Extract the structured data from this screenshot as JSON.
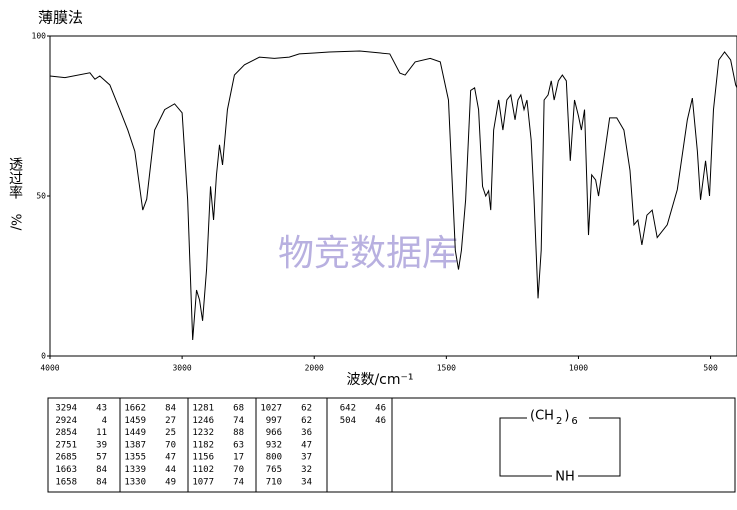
{
  "chart_data": {
    "type": "line",
    "title": "薄膜法",
    "xlabel": "波数/cm⁻¹",
    "ylabel": "透过率",
    "ylabel_unit": "%/",
    "watermark": "物竞数据库",
    "watermark_color": "#b8b0e0",
    "xlim": [
      4000,
      400
    ],
    "x_expand_below": 2000,
    "xticks": [
      4000,
      3000,
      2000,
      1500,
      1000,
      500
    ],
    "ylim": [
      0,
      100
    ],
    "yticks": [
      0,
      50,
      100
    ],
    "series": [
      {
        "name": "spectrum",
        "color": "#000000",
        "x": [
          4000,
          3887,
          3698,
          3660,
          3623,
          3547,
          3472,
          3411,
          3358,
          3298,
          3268,
          3208,
          3132,
          3057,
          3000,
          2958,
          2920,
          2891,
          2868,
          2845,
          2815,
          2785,
          2762,
          2740,
          2717,
          2694,
          2657,
          2604,
          2528,
          2415,
          2302,
          2189,
          2113,
          2000,
          1943,
          1828,
          1714,
          1676,
          1656,
          1618,
          1561,
          1523,
          1492,
          1466,
          1454,
          1443,
          1427,
          1408,
          1393,
          1378,
          1363,
          1351,
          1340,
          1332,
          1321,
          1302,
          1286,
          1271,
          1256,
          1240,
          1229,
          1218,
          1206,
          1195,
          1179,
          1168,
          1153,
          1141,
          1130,
          1115,
          1103,
          1092,
          1076,
          1061,
          1046,
          1031,
          1015,
          1000,
          989,
          977,
          962,
          950,
          935,
          924,
          905,
          882,
          855,
          828,
          805,
          790,
          775,
          760,
          741,
          721,
          702,
          664,
          626,
          588,
          569,
          550,
          538,
          519,
          504,
          489,
          469,
          447,
          424,
          405,
          400
        ],
        "values": [
          87.5,
          87,
          88.5,
          86.5,
          87.5,
          84.7,
          77,
          70.6,
          64,
          45.6,
          49,
          70.6,
          77,
          78.8,
          76,
          48.8,
          5,
          20.6,
          17.5,
          11,
          27,
          53,
          42.5,
          56.6,
          66,
          59.7,
          77,
          87.8,
          91,
          93.4,
          93,
          93.4,
          94.4,
          94.7,
          95,
          95.3,
          94.4,
          88.4,
          87.8,
          91.9,
          93,
          91.9,
          80,
          33,
          27,
          33,
          48.8,
          83,
          83.8,
          77,
          53,
          50,
          51.6,
          45.6,
          70.6,
          80,
          70.6,
          80,
          81.6,
          73.8,
          80,
          81.6,
          77,
          80,
          67.5,
          48.8,
          18,
          33,
          80,
          81.6,
          86,
          80,
          86,
          87.8,
          86,
          61,
          80,
          75,
          70.6,
          77,
          37.8,
          56.6,
          55,
          50,
          61,
          74.4,
          74.4,
          70.6,
          58,
          41,
          42.5,
          34.7,
          44,
          45.6,
          37,
          41,
          52,
          73.8,
          80.6,
          64,
          48.8,
          61,
          50,
          77,
          92.5,
          95,
          92.5,
          84.7,
          83.8
        ]
      }
    ]
  },
  "peak_table": {
    "columns": [
      [
        [
          3294,
          43
        ],
        [
          2924,
          4
        ],
        [
          2854,
          11
        ],
        [
          2751,
          39
        ],
        [
          2685,
          57
        ],
        [
          1663,
          84
        ],
        [
          1658,
          84
        ]
      ],
      [
        [
          1662,
          84
        ],
        [
          1459,
          27
        ],
        [
          1449,
          25
        ],
        [
          1387,
          70
        ],
        [
          1355,
          47
        ],
        [
          1339,
          44
        ],
        [
          1330,
          49
        ]
      ],
      [
        [
          1281,
          68
        ],
        [
          1246,
          74
        ],
        [
          1232,
          88
        ],
        [
          1182,
          63
        ],
        [
          1156,
          17
        ],
        [
          1102,
          70
        ],
        [
          1077,
          74
        ]
      ],
      [
        [
          1027,
          62
        ],
        [
          997,
          62
        ],
        [
          966,
          36
        ],
        [
          932,
          47
        ],
        [
          800,
          37
        ],
        [
          765,
          32
        ],
        [
          710,
          34
        ]
      ],
      [
        [
          642,
          46
        ],
        [
          504,
          46
        ]
      ]
    ]
  },
  "structure": {
    "top_label": [
      "(CH",
      "2",
      ")",
      "6"
    ],
    "bottom_label": "NH"
  }
}
